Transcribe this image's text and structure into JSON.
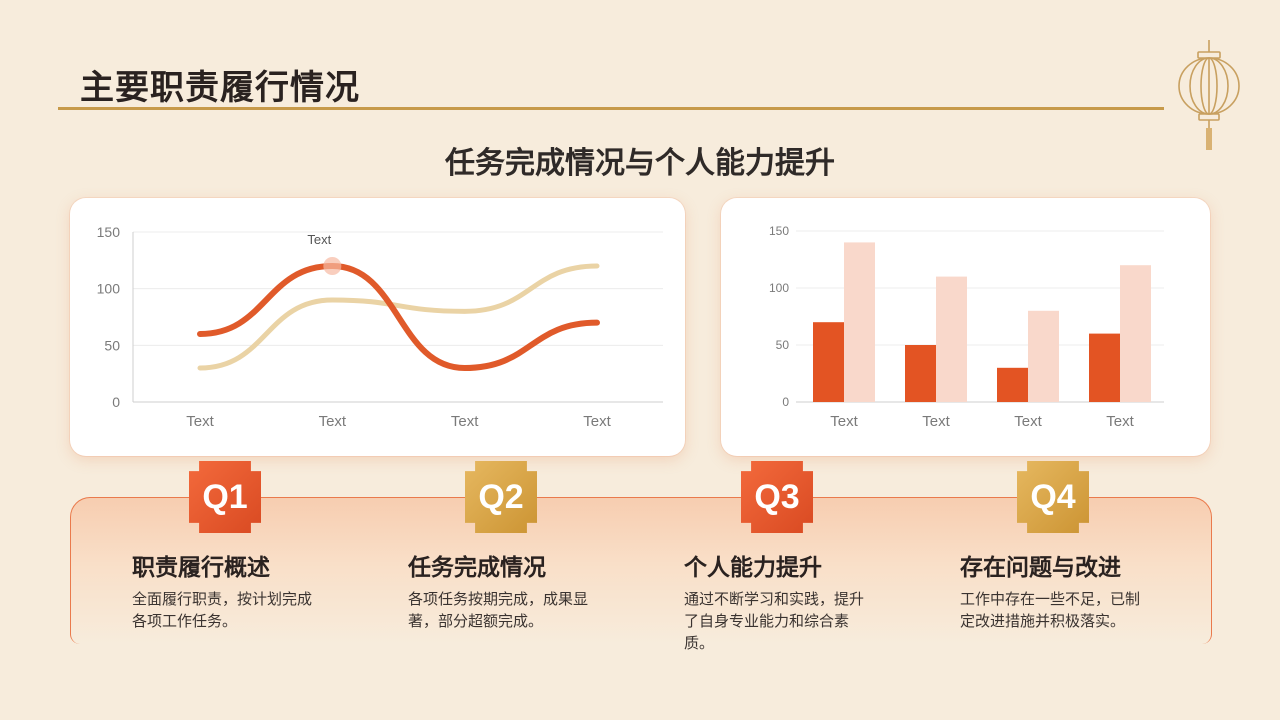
{
  "page": {
    "title": "主要职责履行情况",
    "subtitle": "任务完成情况与个人能力提升"
  },
  "colors": {
    "accent_orange": "#e05a2a",
    "accent_beige": "#ead3a5",
    "bar_dark": "#e35423",
    "bar_light": "#f9d8cb",
    "gold": "#c79a4a"
  },
  "chart_data": [
    {
      "type": "line",
      "categories": [
        "Text",
        "Text",
        "Text",
        "Text"
      ],
      "series": [
        {
          "values": [
            60,
            120,
            30,
            70
          ],
          "color": "#e05a2a"
        },
        {
          "values": [
            30,
            90,
            80,
            120
          ],
          "color": "#ead3a5"
        }
      ],
      "annotations": [
        {
          "text": "Text",
          "category_index": 1,
          "series_index": 0
        }
      ],
      "ylim": [
        0,
        150
      ],
      "yticks": [
        0,
        50,
        100,
        150
      ],
      "grid": true,
      "smooth": true
    },
    {
      "type": "bar",
      "categories": [
        "Text",
        "Text",
        "Text",
        "Text"
      ],
      "series": [
        {
          "values": [
            70,
            50,
            30,
            60
          ],
          "color": "#e35423"
        },
        {
          "values": [
            140,
            110,
            80,
            120
          ],
          "color": "#f9d8cb"
        }
      ],
      "ylim": [
        0,
        150
      ],
      "yticks": [
        0,
        50,
        100,
        150
      ],
      "grid": true
    }
  ],
  "items": [
    {
      "badge": "Q1",
      "title": "职责履行概述",
      "desc": "全面履行职责，按计划完成各项工作任务。",
      "badge_style": "orange"
    },
    {
      "badge": "Q2",
      "title": "任务完成情况",
      "desc": "各项任务按期完成，成果显著，部分超额完成。",
      "badge_style": "gold"
    },
    {
      "badge": "Q3",
      "title": "个人能力提升",
      "desc": "通过不断学习和实践，提升了自身专业能力和综合素质。",
      "badge_style": "orange"
    },
    {
      "badge": "Q4",
      "title": "存在问题与改进",
      "desc": "工作中存在一些不足，已制定改进措施并积极落实。",
      "badge_style": "gold"
    }
  ],
  "decoration": {
    "icon": "lantern-icon"
  }
}
